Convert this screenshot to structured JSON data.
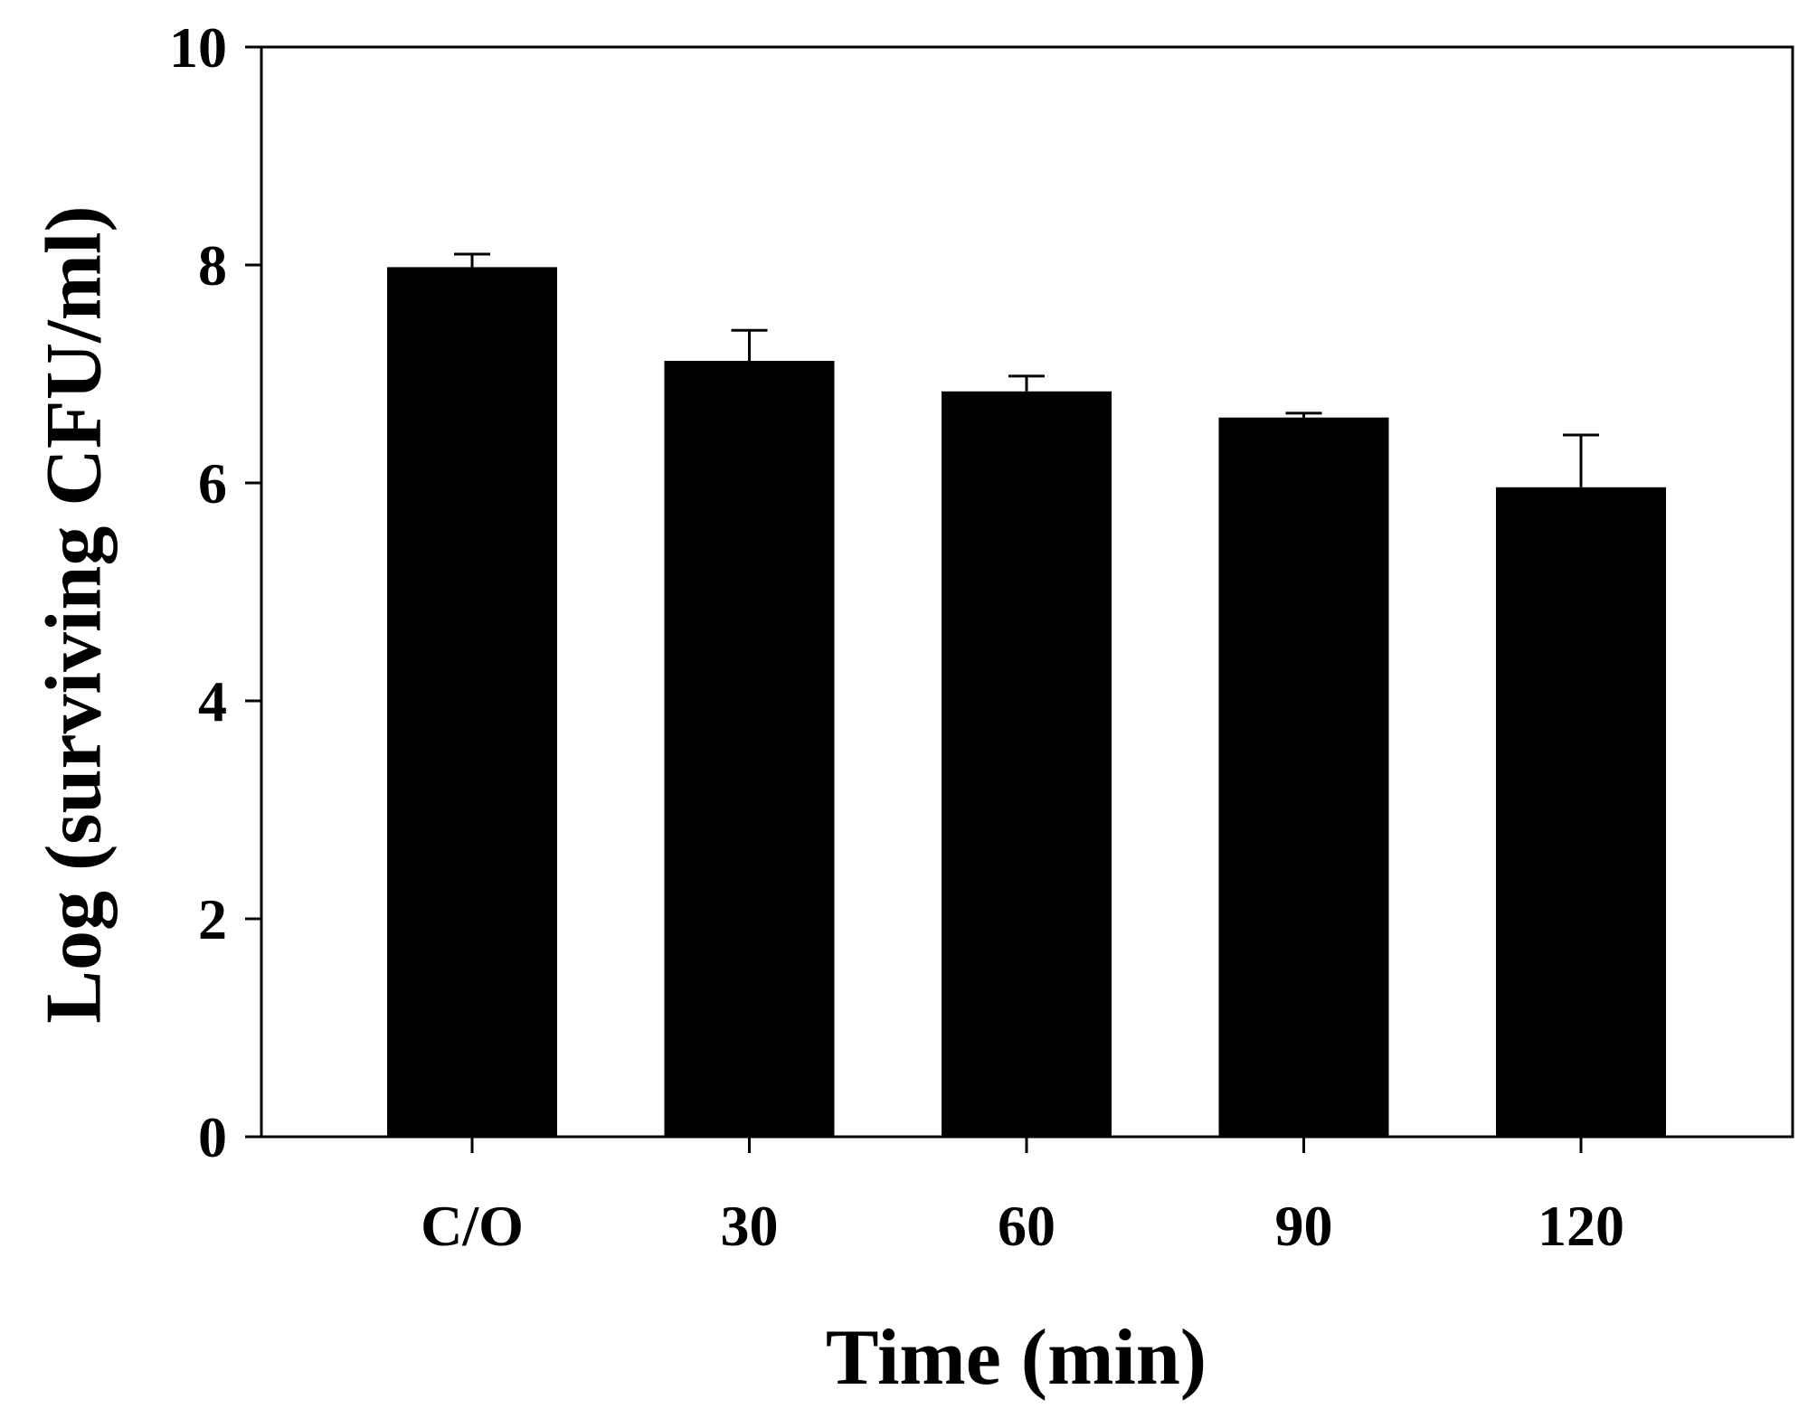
{
  "chart_data": {
    "type": "bar",
    "categories": [
      "C/O",
      "30",
      "60",
      "90",
      "120"
    ],
    "values": [
      7.98,
      7.12,
      6.84,
      6.6,
      5.96
    ],
    "errors": [
      0.12,
      0.28,
      0.14,
      0.04,
      0.48
    ],
    "xlabel": "Time (min)",
    "ylabel": "Log (surviving CFU/ml)",
    "ylim": [
      0,
      10
    ],
    "yticks": [
      0,
      2,
      4,
      6,
      8,
      10
    ],
    "grid": false,
    "legend": "none",
    "bar_color": "#000000"
  }
}
